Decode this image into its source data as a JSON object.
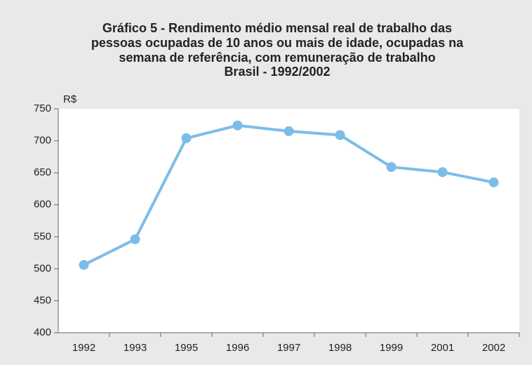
{
  "chart_data": {
    "type": "line",
    "title": [
      "Gráfico 5 - Rendimento médio mensal real de trabalho das",
      "pessoas ocupadas de 10 anos ou mais de idade, ocupadas na",
      "semana de referência, com remuneração de trabalho",
      "Brasil - 1992/2002"
    ],
    "y_label": "R$",
    "categories": [
      "1992",
      "1993",
      "1995",
      "1996",
      "1997",
      "1998",
      "1999",
      "2001",
      "2002"
    ],
    "values": [
      506,
      546,
      704,
      724,
      715,
      709,
      659,
      651,
      635
    ],
    "color": "#7cbde8",
    "ylim": [
      400,
      750
    ],
    "yticks": [
      400,
      450,
      500,
      550,
      600,
      650,
      700,
      750
    ],
    "grid": false
  }
}
